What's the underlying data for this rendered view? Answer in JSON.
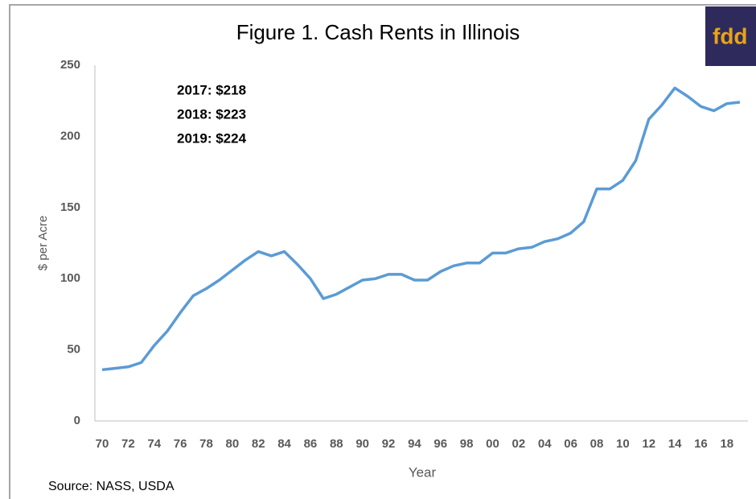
{
  "chart_data": {
    "type": "line",
    "title": "Figure 1.  Cash Rents in Illinois",
    "logo": "fdd",
    "annotations": [
      "2017: $218",
      "2018: $223",
      "2019: $224"
    ],
    "source": "Source: NASS, USDA",
    "x_label": "Year",
    "y_label": "$ per Acre",
    "categories": [
      "70",
      null,
      "72",
      null,
      "74",
      null,
      "76",
      null,
      "78",
      null,
      "80",
      null,
      "82",
      null,
      "84",
      null,
      "86",
      null,
      "88",
      null,
      "90",
      null,
      "92",
      null,
      "94",
      null,
      "96",
      null,
      "98",
      null,
      "00",
      null,
      "02",
      null,
      "04",
      null,
      "06",
      null,
      "08",
      null,
      "10",
      null,
      "12",
      null,
      "14",
      null,
      "16",
      null,
      "18",
      null
    ],
    "series": [
      {
        "name": "Cash rent",
        "color": "#5b9bd5",
        "values": [
          36,
          37,
          38,
          41,
          53,
          63,
          76,
          88,
          93,
          99,
          106,
          113,
          119,
          116,
          119,
          110,
          100,
          86,
          89,
          94,
          99,
          100,
          103,
          103,
          99,
          99,
          105,
          109,
          111,
          111,
          118,
          118,
          121,
          122,
          126,
          128,
          132,
          140,
          163,
          163,
          169,
          183,
          212,
          222,
          234,
          228,
          221,
          218,
          223,
          224
        ]
      }
    ],
    "ylim": [
      0,
      250
    ],
    "yticks": [
      0,
      50,
      100,
      150,
      200,
      250
    ],
    "grid": false
  }
}
